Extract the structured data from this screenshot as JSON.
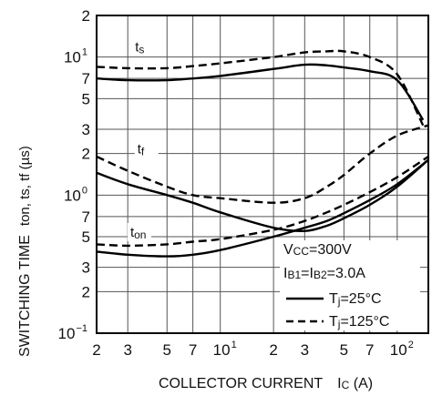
{
  "chart_data": {
    "type": "line",
    "xlabel": "COLLECTOR CURRENT",
    "xlabel_symbol": {
      "main": "I",
      "sub": "C",
      "unit": " (A)"
    },
    "ylabel": "SWITCHING TIME",
    "ylabel_detail": "ton, ts, tf (µs)",
    "x_scale": "log",
    "y_scale": "log",
    "xlim": [
      2,
      150
    ],
    "ylim": [
      0.1,
      20
    ],
    "grid": true,
    "x_ticks": [
      {
        "v": 2,
        "base": "2",
        "sup": ""
      },
      {
        "v": 3,
        "base": "3",
        "sup": ""
      },
      {
        "v": 5,
        "base": "5",
        "sup": ""
      },
      {
        "v": 7,
        "base": "7",
        "sup": ""
      },
      {
        "v": 10,
        "base": "10",
        "sup": "1"
      },
      {
        "v": 20,
        "base": "2",
        "sup": ""
      },
      {
        "v": 30,
        "base": "3",
        "sup": ""
      },
      {
        "v": 50,
        "base": "5",
        "sup": ""
      },
      {
        "v": 70,
        "base": "7",
        "sup": ""
      },
      {
        "v": 100,
        "base": "10",
        "sup": "2"
      },
      {
        "v": 200,
        "base": "2",
        "sup": ""
      }
    ],
    "y_ticks": [
      {
        "v": 20,
        "base": "2",
        "sup": ""
      },
      {
        "v": 10,
        "base": "10",
        "sup": "1"
      },
      {
        "v": 7,
        "base": "7",
        "sup": ""
      },
      {
        "v": 5,
        "base": "5",
        "sup": ""
      },
      {
        "v": 3,
        "base": "3",
        "sup": ""
      },
      {
        "v": 2,
        "base": "2",
        "sup": ""
      },
      {
        "v": 1,
        "base": "10",
        "sup": "0"
      },
      {
        "v": 0.7,
        "base": "7",
        "sup": ""
      },
      {
        "v": 0.5,
        "base": "5",
        "sup": ""
      },
      {
        "v": 0.3,
        "base": "3",
        "sup": ""
      },
      {
        "v": 0.2,
        "base": "2",
        "sup": ""
      },
      {
        "v": 0.1,
        "base": "10",
        "sup": "−1"
      }
    ],
    "curve_labels": [
      {
        "main": "t",
        "sub": "s",
        "x": 3.3,
        "y": 11
      },
      {
        "main": "t",
        "sub": "f",
        "x": 3.4,
        "y": 2.0
      },
      {
        "main": "t",
        "sub": "on",
        "x": 3.1,
        "y": 0.5
      }
    ],
    "conditions": {
      "vcc": {
        "main": "V",
        "sub": "CC",
        "rest": "=300V"
      },
      "ib": {
        "a": "I",
        "a_sub": "B1",
        "b": "=I",
        "b_sub": "B2",
        "rest": "=3.0A"
      }
    },
    "legend": {
      "placement": "bottom-right",
      "entries": [
        {
          "main": "T",
          "sub": "j",
          "rest": "=25°C",
          "style": "solid"
        },
        {
          "main": "T",
          "sub": "j",
          "rest": "=125°C",
          "style": "dashed"
        }
      ]
    },
    "series": [
      {
        "curve": "ts",
        "style": "solid",
        "x": [
          2,
          3,
          5,
          7,
          10,
          20,
          30,
          40,
          50,
          70,
          100,
          140
        ],
        "y": [
          7.0,
          6.8,
          6.8,
          7.0,
          7.3,
          8.2,
          8.8,
          8.7,
          8.4,
          7.9,
          6.8,
          3.5
        ]
      },
      {
        "curve": "ts",
        "style": "dashed",
        "x": [
          2,
          3,
          5,
          7,
          10,
          20,
          30,
          40,
          50,
          70,
          100,
          140
        ],
        "y": [
          8.5,
          8.3,
          8.3,
          8.6,
          9.0,
          10.0,
          10.8,
          11.0,
          11.0,
          10.0,
          7.5,
          3.2
        ]
      },
      {
        "curve": "tf",
        "style": "solid",
        "x": [
          2,
          3,
          5,
          7,
          10,
          20,
          30,
          40,
          50,
          70,
          100,
          150
        ],
        "y": [
          1.45,
          1.2,
          1.0,
          0.88,
          0.75,
          0.58,
          0.55,
          0.6,
          0.68,
          0.85,
          1.15,
          1.8
        ]
      },
      {
        "curve": "tf",
        "style": "dashed",
        "x": [
          2,
          3,
          5,
          7,
          10,
          20,
          30,
          40,
          50,
          70,
          100,
          150
        ],
        "y": [
          1.9,
          1.5,
          1.15,
          1.0,
          0.95,
          0.88,
          0.95,
          1.15,
          1.4,
          2.0,
          2.7,
          3.2
        ]
      },
      {
        "curve": "ton",
        "style": "solid",
        "x": [
          2,
          3,
          5,
          7,
          10,
          20,
          30,
          40,
          50,
          70,
          100,
          150
        ],
        "y": [
          0.39,
          0.37,
          0.36,
          0.37,
          0.4,
          0.5,
          0.58,
          0.65,
          0.74,
          0.92,
          1.2,
          1.8
        ]
      },
      {
        "curve": "ton",
        "style": "dashed",
        "x": [
          2,
          3,
          5,
          7,
          10,
          20,
          30,
          40,
          50,
          70,
          100,
          150
        ],
        "y": [
          0.44,
          0.43,
          0.44,
          0.46,
          0.48,
          0.56,
          0.65,
          0.75,
          0.85,
          1.05,
          1.35,
          1.9
        ]
      }
    ]
  }
}
